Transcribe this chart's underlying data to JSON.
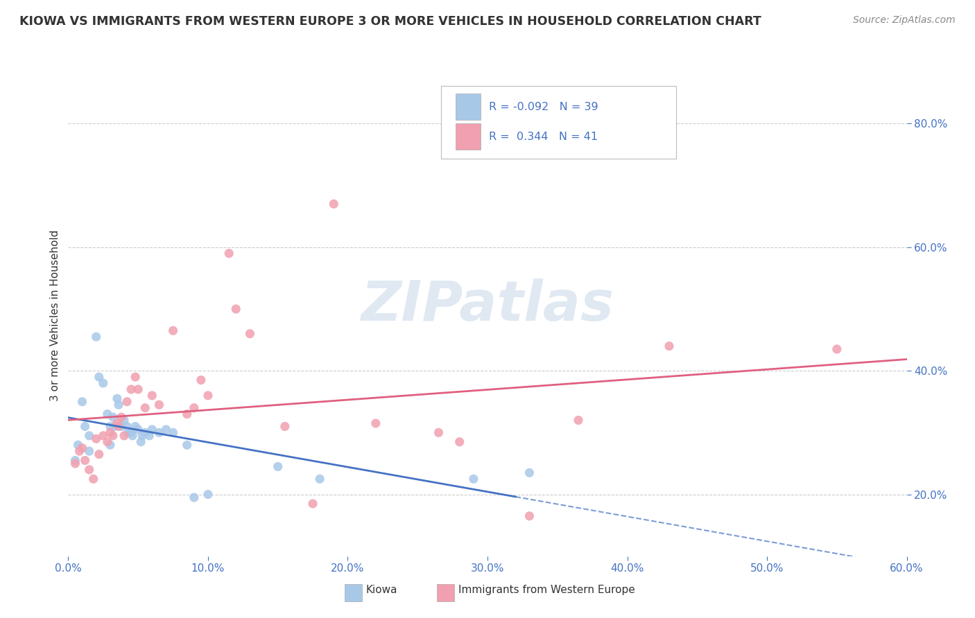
{
  "title": "KIOWA VS IMMIGRANTS FROM WESTERN EUROPE 3 OR MORE VEHICLES IN HOUSEHOLD CORRELATION CHART",
  "source": "Source: ZipAtlas.com",
  "xmin": 0.0,
  "xmax": 0.6,
  "ymin": 0.1,
  "ymax": 0.88,
  "ytick_locs": [
    0.2,
    0.4,
    0.6,
    0.8
  ],
  "xtick_locs": [
    0.0,
    0.1,
    0.2,
    0.3,
    0.4,
    0.5,
    0.6
  ],
  "ylabel_label": "3 or more Vehicles in Household",
  "legend_kiowa_R": "-0.092",
  "legend_kiowa_N": "39",
  "legend_immigrants_R": "0.344",
  "legend_immigrants_N": "41",
  "color_kiowa": "#A8C8E8",
  "color_immigrants": "#F0A0B0",
  "color_kiowa_line": "#4472C4",
  "color_immigrants_line": "#E06080",
  "background_color": "#FFFFFF",
  "watermark_text": "ZIPatlas",
  "kiowa_x": [
    0.005,
    0.007,
    0.01,
    0.012,
    0.015,
    0.015,
    0.02,
    0.022,
    0.025,
    0.028,
    0.03,
    0.03,
    0.032,
    0.033,
    0.035,
    0.036,
    0.038,
    0.04,
    0.042,
    0.043,
    0.045,
    0.046,
    0.048,
    0.05,
    0.052,
    0.053,
    0.055,
    0.058,
    0.06,
    0.065,
    0.07,
    0.075,
    0.085,
    0.09,
    0.1,
    0.15,
    0.18,
    0.29,
    0.33
  ],
  "kiowa_y": [
    0.255,
    0.28,
    0.35,
    0.31,
    0.295,
    0.27,
    0.455,
    0.39,
    0.38,
    0.33,
    0.31,
    0.28,
    0.325,
    0.31,
    0.355,
    0.345,
    0.31,
    0.32,
    0.31,
    0.3,
    0.3,
    0.295,
    0.31,
    0.305,
    0.285,
    0.295,
    0.3,
    0.295,
    0.305,
    0.3,
    0.305,
    0.3,
    0.28,
    0.195,
    0.2,
    0.245,
    0.225,
    0.225,
    0.235
  ],
  "immigrants_x": [
    0.005,
    0.008,
    0.01,
    0.012,
    0.015,
    0.018,
    0.02,
    0.022,
    0.025,
    0.028,
    0.03,
    0.032,
    0.035,
    0.036,
    0.038,
    0.04,
    0.042,
    0.045,
    0.048,
    0.05,
    0.055,
    0.06,
    0.065,
    0.075,
    0.085,
    0.09,
    0.095,
    0.1,
    0.115,
    0.12,
    0.13,
    0.155,
    0.175,
    0.19,
    0.22,
    0.265,
    0.28,
    0.33,
    0.365,
    0.43,
    0.55
  ],
  "immigrants_y": [
    0.25,
    0.27,
    0.275,
    0.255,
    0.24,
    0.225,
    0.29,
    0.265,
    0.295,
    0.285,
    0.3,
    0.295,
    0.315,
    0.31,
    0.325,
    0.295,
    0.35,
    0.37,
    0.39,
    0.37,
    0.34,
    0.36,
    0.345,
    0.465,
    0.33,
    0.34,
    0.385,
    0.36,
    0.59,
    0.5,
    0.46,
    0.31,
    0.185,
    0.67,
    0.315,
    0.3,
    0.285,
    0.165,
    0.32,
    0.44,
    0.435
  ]
}
